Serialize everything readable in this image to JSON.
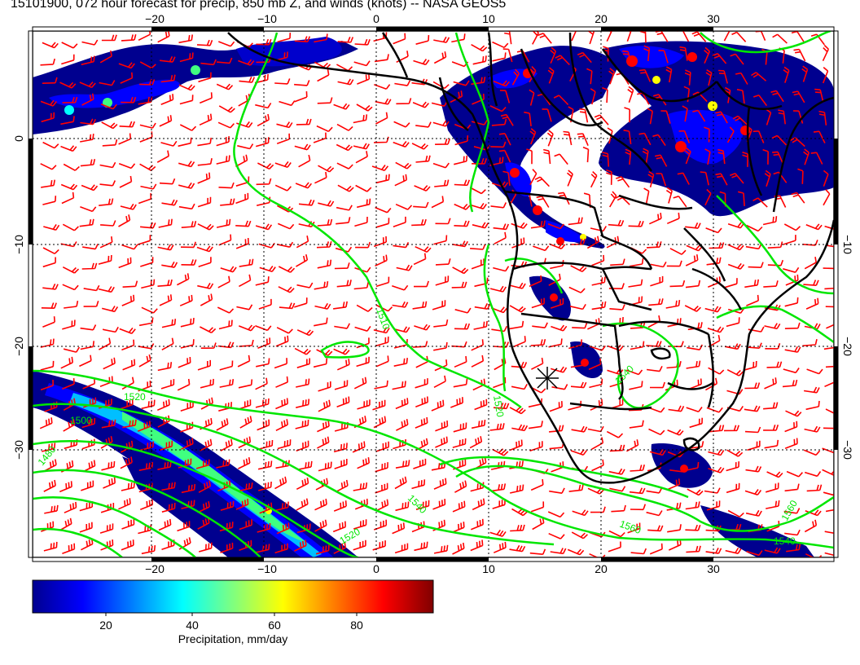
{
  "title": "15101900, 072 hour forecast for precip, 850 mb Z, and winds (knots) -- NASA GEOS5",
  "map": {
    "lon_ticks": [
      "−20",
      "−10",
      "0",
      "10",
      "20",
      "30"
    ],
    "lat_ticks": [
      "0",
      "−10",
      "−20",
      "−30"
    ],
    "contour_labels": [
      "1500",
      "1520",
      "1480",
      "1520",
      "1540",
      "1560",
      "1540",
      "1560",
      "1520",
      "1540",
      "1510"
    ],
    "colors": {
      "land_boundaries": "#000000",
      "height_contours": "#00e600",
      "wind_barbs": "#ff0000",
      "precip_low": "#00008f",
      "precip_high": "#800000"
    }
  },
  "colorbar": {
    "ticks": [
      "20",
      "40",
      "60",
      "80"
    ],
    "label": "Precipitation, mm/day",
    "colormap": "jet"
  }
}
